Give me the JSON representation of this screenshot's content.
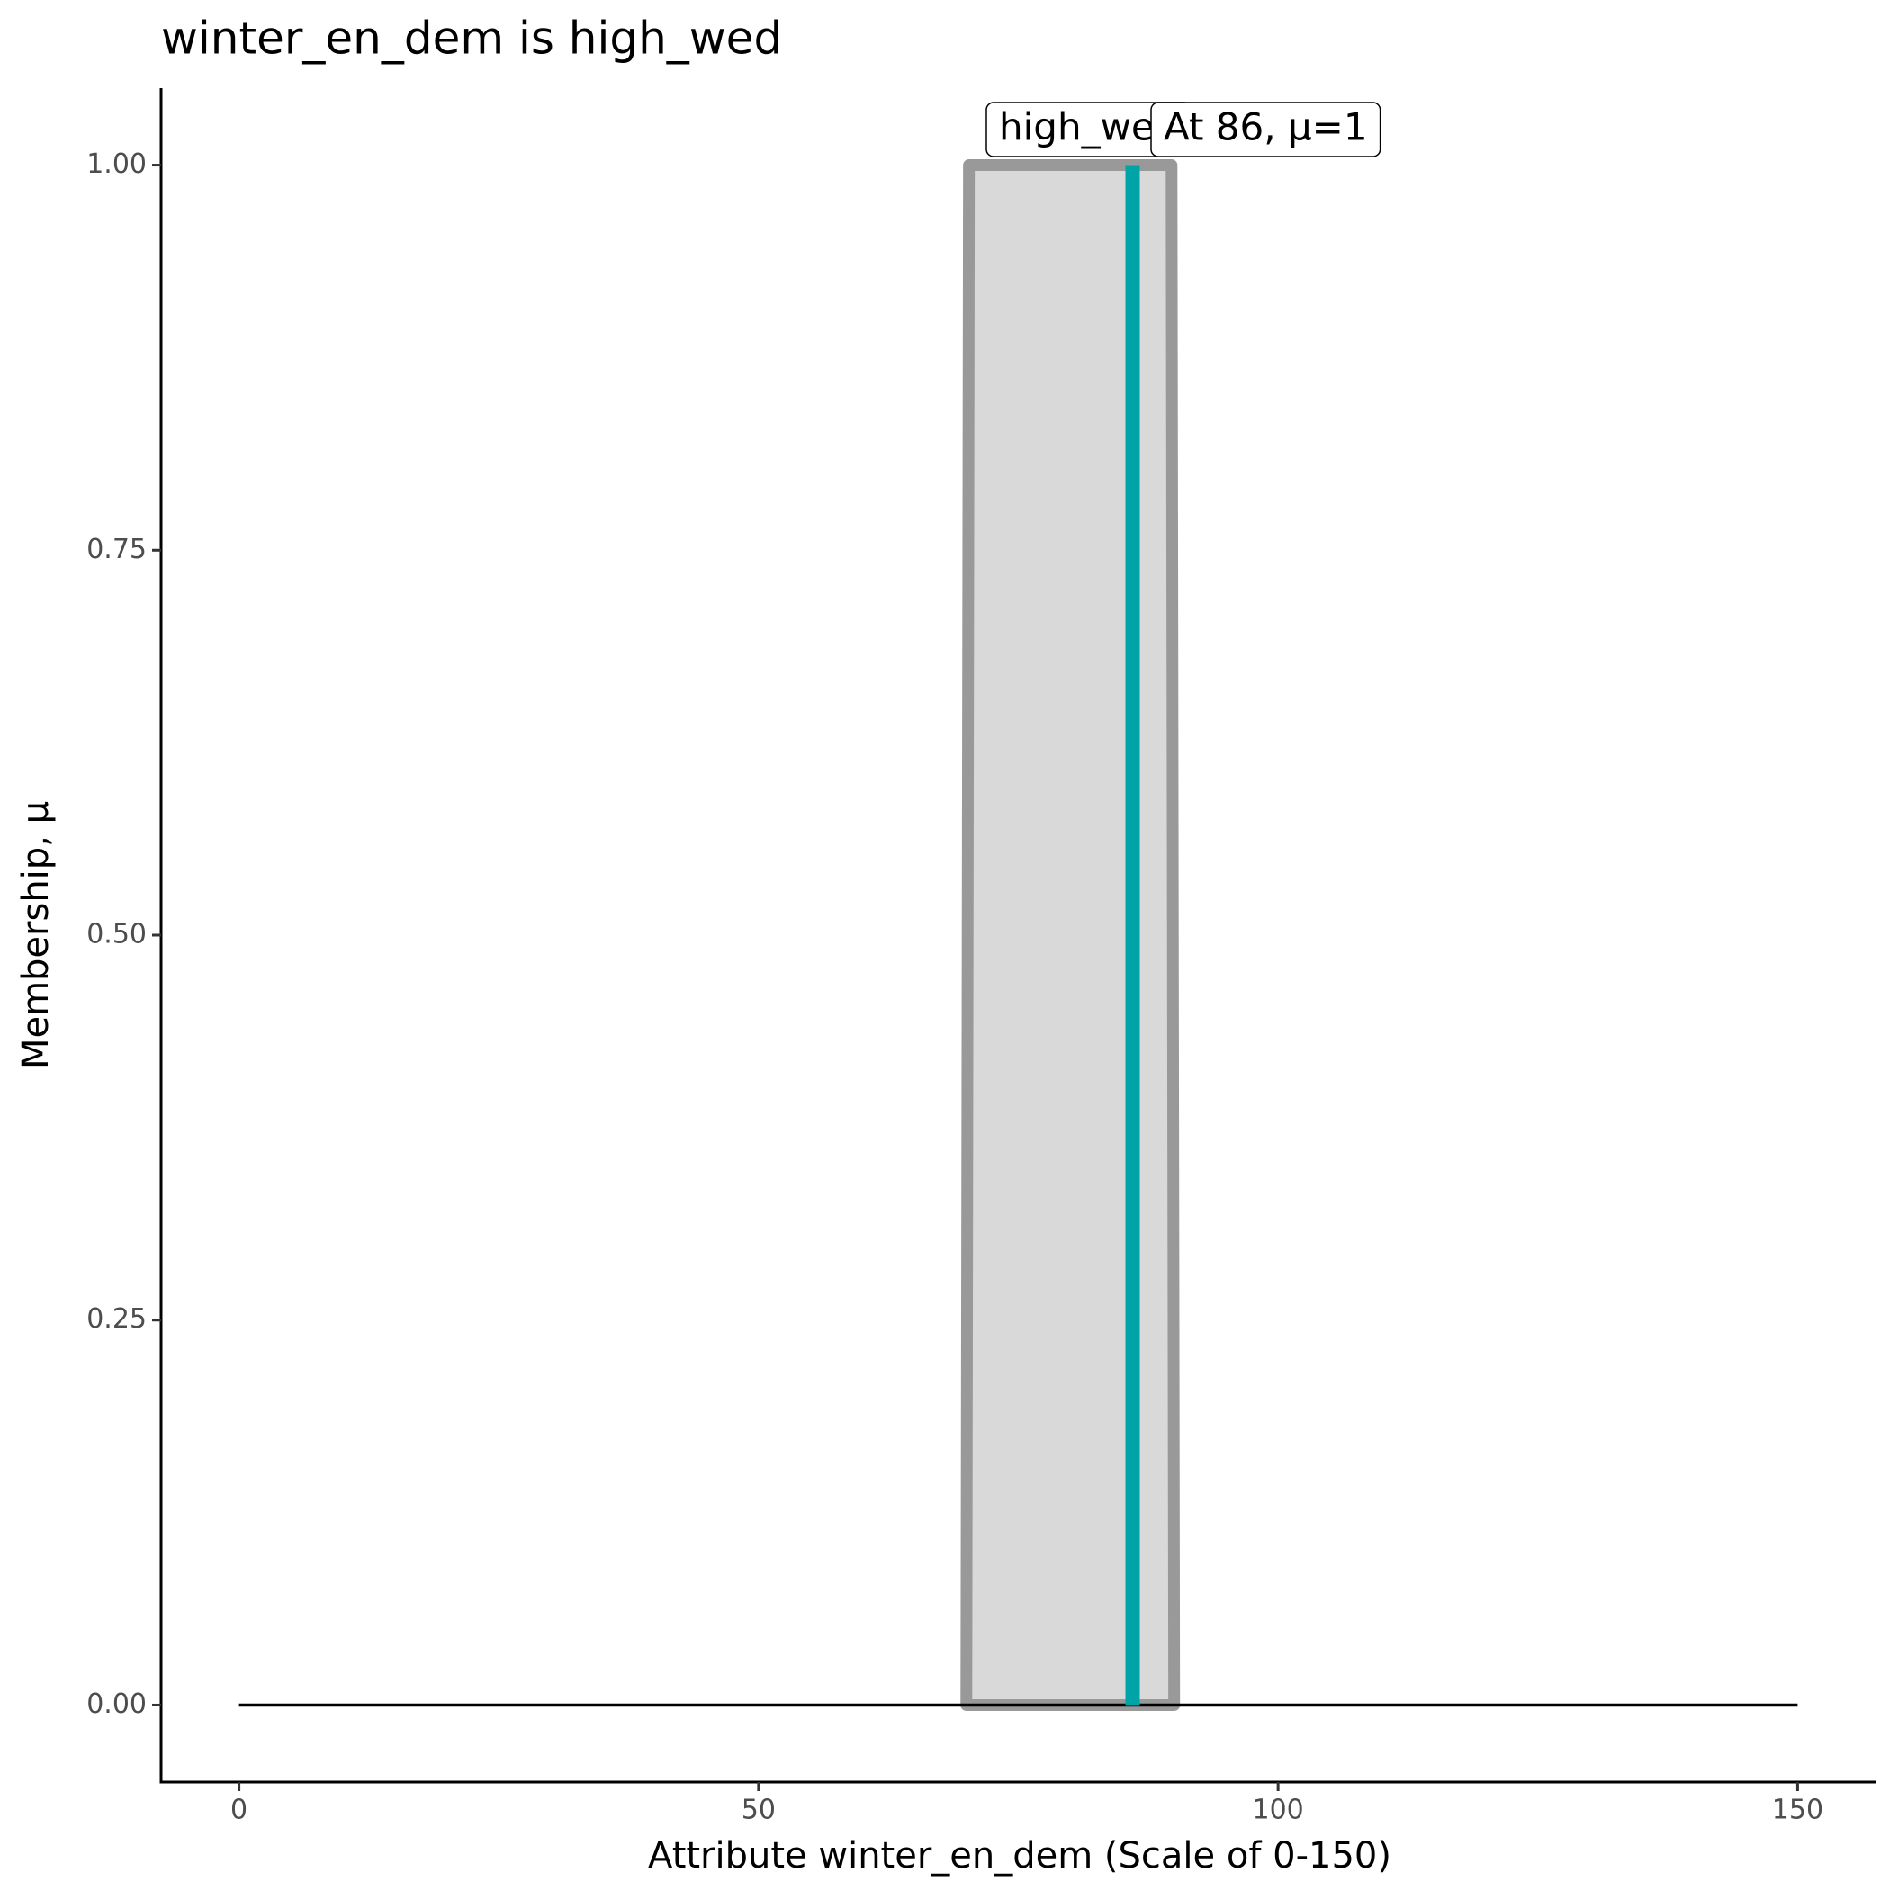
{
  "chart_data": {
    "type": "area",
    "title": "winter_en_dem is high_wed",
    "x_label": "Attribute winter_en_dem (Scale of 0-150)",
    "y_label": "Membership, μ",
    "xlim": [
      -7.5,
      157.5
    ],
    "ylim": [
      -0.05,
      1.05
    ],
    "xticks": [
      0,
      50,
      100,
      150
    ],
    "yticks": [
      {
        "value": 0,
        "label": "0.00"
      },
      {
        "value": 0.25,
        "label": "0.25"
      },
      {
        "value": 0.5,
        "label": "0.50"
      },
      {
        "value": 0.75,
        "label": "0.75"
      },
      {
        "value": 1,
        "label": "1.00"
      }
    ],
    "grid": false,
    "series": [
      {
        "x": [
          70,
          70.25,
          89.75,
          90
        ],
        "values": [
          0,
          1,
          1,
          0
        ],
        "color": "#999999",
        "fill": "#d9d9d9"
      },
      {
        "x": [
          0,
          150
        ],
        "values": [
          0,
          0
        ],
        "color": "#000000"
      }
    ],
    "set_label": "high_wed",
    "marker": {
      "x": 86,
      "value": 1,
      "label": "At 86, μ=1",
      "color": "#00a3a6"
    }
  }
}
